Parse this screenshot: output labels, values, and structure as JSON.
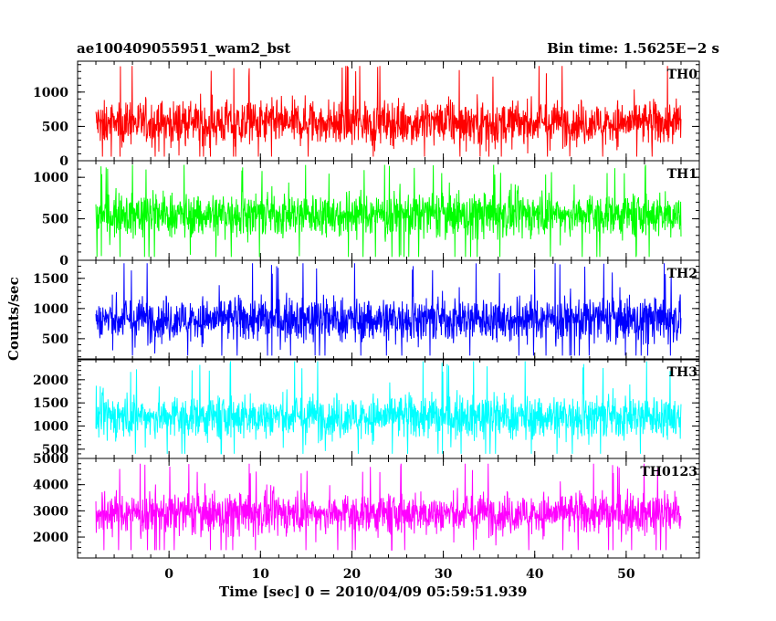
{
  "chart_data": {
    "type": "line",
    "title": "ae100409055951_wam2_bst",
    "subtitle": "Bin time: 1.5625E−2 s",
    "xlabel": "Time [sec] 0 = 2010/04/09 05:59:51.939",
    "ylabel": "Counts/sec",
    "xlim": [
      -10,
      58
    ],
    "xticks": [
      0,
      10,
      20,
      30,
      40,
      50
    ],
    "data_x_range": [
      -8,
      56
    ],
    "panels": [
      {
        "name": "TH0",
        "color": "#ff0000",
        "ylim": [
          0,
          1450
        ],
        "yticks": [
          0,
          500,
          1000
        ],
        "mean": 550,
        "low": 60,
        "high": 1380
      },
      {
        "name": "TH1",
        "color": "#00ff00",
        "ylim": [
          0,
          1200
        ],
        "yticks": [
          0,
          500,
          1000
        ],
        "mean": 550,
        "low": 40,
        "high": 1150
      },
      {
        "name": "TH2",
        "color": "#0000ff",
        "ylim": [
          150,
          1800
        ],
        "yticks": [
          500,
          1000,
          1500
        ],
        "mean": 820,
        "low": 220,
        "high": 1750
      },
      {
        "name": "TH3",
        "color": "#00ffff",
        "ylim": [
          300,
          2450
        ],
        "yticks": [
          500,
          1000,
          1500,
          2000
        ],
        "mean": 1200,
        "low": 400,
        "high": 2400
      },
      {
        "name": "TH0123",
        "color": "#ff00ff",
        "ylim": [
          1200,
          5000
        ],
        "yticks": [
          2000,
          3000,
          4000,
          5000
        ],
        "mean": 2900,
        "low": 1500,
        "high": 4800
      }
    ]
  }
}
